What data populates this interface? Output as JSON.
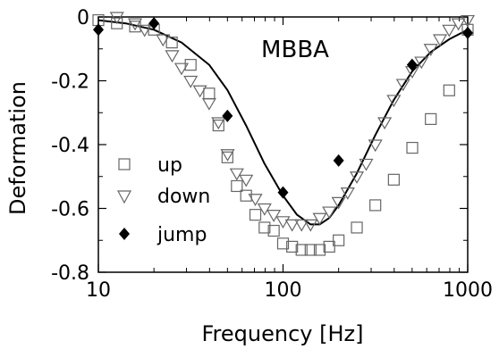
{
  "chart_data": {
    "type": "scatter",
    "annotation": "MBBA",
    "xlabel": "Frequency [Hz]",
    "ylabel": "Deformation",
    "xscale": "log",
    "xlim": [
      10,
      1000
    ],
    "ylim": [
      -0.8,
      0
    ],
    "xticks": [
      10,
      100,
      1000
    ],
    "xtick_labels": [
      "10",
      "100",
      "1000"
    ],
    "yticks": [
      0,
      -0.2,
      -0.4,
      -0.6,
      -0.8
    ],
    "ytick_labels": [
      "0",
      "-0.2",
      "-0.4",
      "-0.6",
      "-0.8"
    ],
    "grid": false,
    "legend_position": "left",
    "series": [
      {
        "name": "up",
        "marker": "open-square",
        "points": [
          {
            "x": 10,
            "y": -0.01
          },
          {
            "x": 12.6,
            "y": -0.02
          },
          {
            "x": 15.8,
            "y": -0.03
          },
          {
            "x": 20,
            "y": -0.04
          },
          {
            "x": 25,
            "y": -0.08
          },
          {
            "x": 31.6,
            "y": -0.15
          },
          {
            "x": 39.8,
            "y": -0.24
          },
          {
            "x": 44.7,
            "y": -0.34
          },
          {
            "x": 50,
            "y": -0.44
          },
          {
            "x": 56.2,
            "y": -0.53
          },
          {
            "x": 63.1,
            "y": -0.56
          },
          {
            "x": 70.8,
            "y": -0.62
          },
          {
            "x": 79.4,
            "y": -0.66
          },
          {
            "x": 89.1,
            "y": -0.67
          },
          {
            "x": 100,
            "y": -0.71
          },
          {
            "x": 112,
            "y": -0.72
          },
          {
            "x": 126,
            "y": -0.73
          },
          {
            "x": 141,
            "y": -0.73
          },
          {
            "x": 158,
            "y": -0.73
          },
          {
            "x": 178,
            "y": -0.72
          },
          {
            "x": 200,
            "y": -0.7
          },
          {
            "x": 251,
            "y": -0.66
          },
          {
            "x": 316,
            "y": -0.59
          },
          {
            "x": 398,
            "y": -0.51
          },
          {
            "x": 501,
            "y": -0.41
          },
          {
            "x": 631,
            "y": -0.32
          },
          {
            "x": 794,
            "y": -0.23
          },
          {
            "x": 1000,
            "y": -0.04
          }
        ]
      },
      {
        "name": "down",
        "marker": "open-triangle-down",
        "points": [
          {
            "x": 12.6,
            "y": 0.0
          },
          {
            "x": 15.8,
            "y": -0.02
          },
          {
            "x": 17.8,
            "y": -0.04
          },
          {
            "x": 22.4,
            "y": -0.07
          },
          {
            "x": 25.1,
            "y": -0.12
          },
          {
            "x": 28.2,
            "y": -0.16
          },
          {
            "x": 31.6,
            "y": -0.2
          },
          {
            "x": 35.5,
            "y": -0.23
          },
          {
            "x": 39.8,
            "y": -0.27
          },
          {
            "x": 44.7,
            "y": -0.33
          },
          {
            "x": 50.1,
            "y": -0.43
          },
          {
            "x": 56.2,
            "y": -0.49
          },
          {
            "x": 63.1,
            "y": -0.51
          },
          {
            "x": 70.8,
            "y": -0.57
          },
          {
            "x": 79.4,
            "y": -0.6
          },
          {
            "x": 89.1,
            "y": -0.62
          },
          {
            "x": 100,
            "y": -0.64
          },
          {
            "x": 112,
            "y": -0.65
          },
          {
            "x": 126,
            "y": -0.65
          },
          {
            "x": 141,
            "y": -0.65
          },
          {
            "x": 158,
            "y": -0.63
          },
          {
            "x": 178,
            "y": -0.61
          },
          {
            "x": 200,
            "y": -0.58
          },
          {
            "x": 224,
            "y": -0.55
          },
          {
            "x": 251,
            "y": -0.5
          },
          {
            "x": 282,
            "y": -0.46
          },
          {
            "x": 316,
            "y": -0.4
          },
          {
            "x": 355,
            "y": -0.33
          },
          {
            "x": 398,
            "y": -0.26
          },
          {
            "x": 447,
            "y": -0.21
          },
          {
            "x": 501,
            "y": -0.17
          },
          {
            "x": 562,
            "y": -0.14
          },
          {
            "x": 631,
            "y": -0.1
          },
          {
            "x": 708,
            "y": -0.07
          },
          {
            "x": 794,
            "y": -0.04
          },
          {
            "x": 891,
            "y": -0.02
          },
          {
            "x": 1000,
            "y": -0.01
          }
        ]
      },
      {
        "name": "jump",
        "marker": "filled-diamond",
        "points": [
          {
            "x": 10,
            "y": -0.04
          },
          {
            "x": 20,
            "y": -0.02
          },
          {
            "x": 50,
            "y": -0.31
          },
          {
            "x": 100,
            "y": -0.55
          },
          {
            "x": 200,
            "y": -0.45
          },
          {
            "x": 500,
            "y": -0.15
          },
          {
            "x": 1000,
            "y": -0.05
          }
        ]
      },
      {
        "marker": "line",
        "points": [
          {
            "x": 10,
            "y": -0.01
          },
          {
            "x": 14.1,
            "y": -0.02
          },
          {
            "x": 20,
            "y": -0.04
          },
          {
            "x": 28.2,
            "y": -0.08
          },
          {
            "x": 39.8,
            "y": -0.15
          },
          {
            "x": 50.1,
            "y": -0.23
          },
          {
            "x": 63.1,
            "y": -0.34
          },
          {
            "x": 79.4,
            "y": -0.46
          },
          {
            "x": 100,
            "y": -0.56
          },
          {
            "x": 119,
            "y": -0.62
          },
          {
            "x": 141,
            "y": -0.65
          },
          {
            "x": 158,
            "y": -0.65
          },
          {
            "x": 178,
            "y": -0.63
          },
          {
            "x": 200,
            "y": -0.59
          },
          {
            "x": 251,
            "y": -0.49
          },
          {
            "x": 316,
            "y": -0.37
          },
          {
            "x": 398,
            "y": -0.26
          },
          {
            "x": 501,
            "y": -0.17
          },
          {
            "x": 631,
            "y": -0.11
          },
          {
            "x": 794,
            "y": -0.07
          },
          {
            "x": 1000,
            "y": -0.04
          }
        ]
      }
    ]
  }
}
